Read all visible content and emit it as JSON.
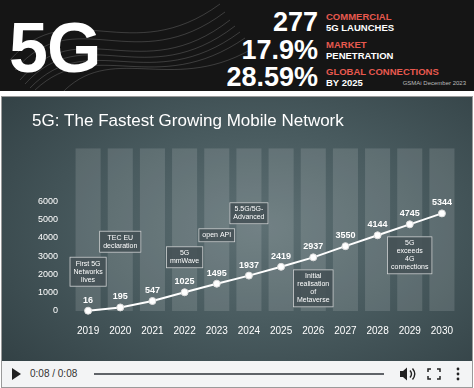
{
  "banner": {
    "title": "5G",
    "stats": [
      {
        "value": "277",
        "label": [
          "COMMERCIAL",
          "5G LAUNCHES"
        ]
      },
      {
        "value": "17.9%",
        "label": [
          "MARKET",
          "PENETRATION"
        ]
      },
      {
        "value": "28.59%",
        "label": [
          "GLOBAL CONNECTIONS",
          "BY 2025"
        ]
      }
    ],
    "source": "GSMAi December 2023"
  },
  "chart_data": {
    "type": "line",
    "title": "5G: The Fastest Growing Mobile Network",
    "categories": [
      "2019",
      "2020",
      "2021",
      "2022",
      "2023",
      "2024",
      "2025",
      "2026",
      "2027",
      "2028",
      "2029",
      "2030"
    ],
    "values": [
      16,
      195,
      547,
      1025,
      1495,
      1937,
      2419,
      2937,
      3550,
      4144,
      4745,
      5344
    ],
    "color": "#ffffff",
    "marker": "circle",
    "ylim": [
      0,
      6000
    ],
    "yticks": [
      0,
      1000,
      2000,
      3000,
      4000,
      5000,
      6000
    ],
    "grid": false,
    "data_labels": true,
    "annotations": [
      {
        "category": "2019",
        "text": "First 5G Networks lives"
      },
      {
        "category": "2020",
        "text": "TEC EU declaration"
      },
      {
        "category": "2022",
        "text": "5G mmWave"
      },
      {
        "category": "2023",
        "text": "open API"
      },
      {
        "category": "2024",
        "text": "5.5G/5G-Advanced"
      },
      {
        "category": "2026",
        "text": "Initial realisation of Metaverse"
      },
      {
        "category": "2029",
        "text": "5G exceeds 4G connections"
      }
    ]
  },
  "video": {
    "time": "0:08 / 0:08"
  }
}
